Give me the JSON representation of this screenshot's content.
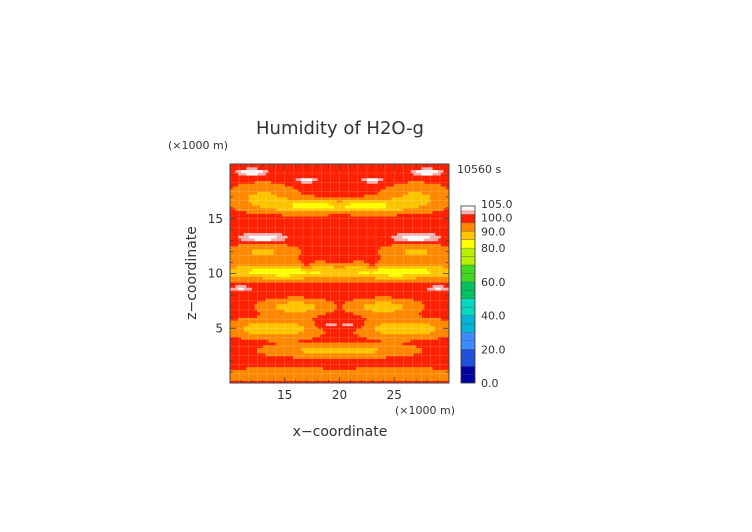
{
  "chart_data": {
    "type": "heatmap",
    "title": "Humidity of H2O-g",
    "timestamp": "10560 s",
    "xlabel": "x−coordinate",
    "ylabel": "z−coordinate",
    "x_unit": "(×1000 m)",
    "y_unit": "(×1000 m)",
    "xlim": [
      10,
      30
    ],
    "ylim": [
      0,
      20
    ],
    "x_ticks": [
      "15",
      "20",
      "25"
    ],
    "y_ticks": [
      "5",
      "10",
      "15"
    ],
    "colorbar": {
      "labels": [
        "105.0",
        "100.0",
        "90.0",
        "80.0",
        "60.0",
        "40.0",
        "20.0",
        "0.0"
      ],
      "bands": [
        {
          "from": 0,
          "to": 10,
          "color": "#0000a0"
        },
        {
          "from": 10,
          "to": 20,
          "color": "#1f4fe0"
        },
        {
          "from": 20,
          "to": 30,
          "color": "#3c8cff"
        },
        {
          "from": 30,
          "to": 40,
          "color": "#00b4d8"
        },
        {
          "from": 40,
          "to": 50,
          "color": "#00d8c0"
        },
        {
          "from": 50,
          "to": 60,
          "color": "#00c060"
        },
        {
          "from": 60,
          "to": 70,
          "color": "#40d820"
        },
        {
          "from": 70,
          "to": 80,
          "color": "#b8f000"
        },
        {
          "from": 80,
          "to": 85,
          "color": "#ffff00"
        },
        {
          "from": 85,
          "to": 90,
          "color": "#ffc400"
        },
        {
          "from": 90,
          "to": 95,
          "color": "#ff8800"
        },
        {
          "from": 95,
          "to": 100,
          "color": "#ff2000"
        },
        {
          "from": 100,
          "to": 102.5,
          "color": "#f4b0b0"
        },
        {
          "from": 102.5,
          "to": 105,
          "color": "#ffffff"
        }
      ]
    },
    "grid": true,
    "field_description_rows_z": [
      {
        "z": 19.5,
        "pattern": "pink patches and red"
      },
      {
        "z": 16,
        "pattern": "yellow/orange band, red center"
      },
      {
        "z": 13.5,
        "pattern": "pink patches at left and right"
      },
      {
        "z": 10,
        "pattern": "yellow band across"
      },
      {
        "z": 5,
        "pattern": "yellow patches"
      },
      {
        "z": 3,
        "pattern": "yellow/orange band"
      },
      {
        "z": 0.5,
        "pattern": "orange/yellow"
      }
    ]
  }
}
